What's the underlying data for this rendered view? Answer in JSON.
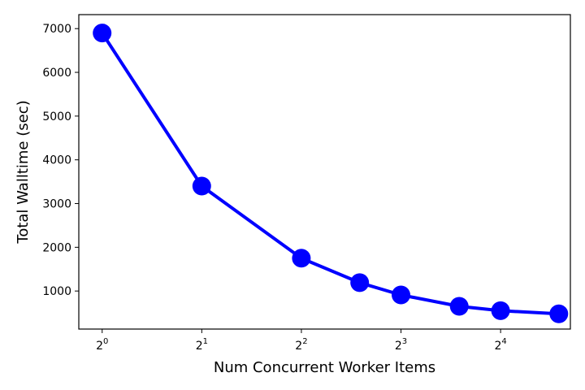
{
  "chart_data": {
    "type": "line",
    "xlabel": "Num Concurrent Worker Items",
    "ylabel": "Total Walltime (sec)",
    "x_scale": "log2",
    "xlim": [
      0.85,
      26
    ],
    "ylim": [
      130,
      7320
    ],
    "x_ticks": [
      {
        "value": 1,
        "base": "2",
        "exp": "0"
      },
      {
        "value": 2,
        "base": "2",
        "exp": "1"
      },
      {
        "value": 4,
        "base": "2",
        "exp": "2"
      },
      {
        "value": 8,
        "base": "2",
        "exp": "3"
      },
      {
        "value": 16,
        "base": "2",
        "exp": "4"
      }
    ],
    "y_ticks": [
      1000,
      2000,
      3000,
      4000,
      5000,
      6000,
      7000
    ],
    "grid": false,
    "series": [
      {
        "color": "#0000ff",
        "x": [
          1,
          2,
          4,
          6,
          8,
          12,
          16,
          24
        ],
        "y": [
          6900,
          3400,
          1750,
          1190,
          910,
          650,
          550,
          480
        ]
      }
    ]
  }
}
